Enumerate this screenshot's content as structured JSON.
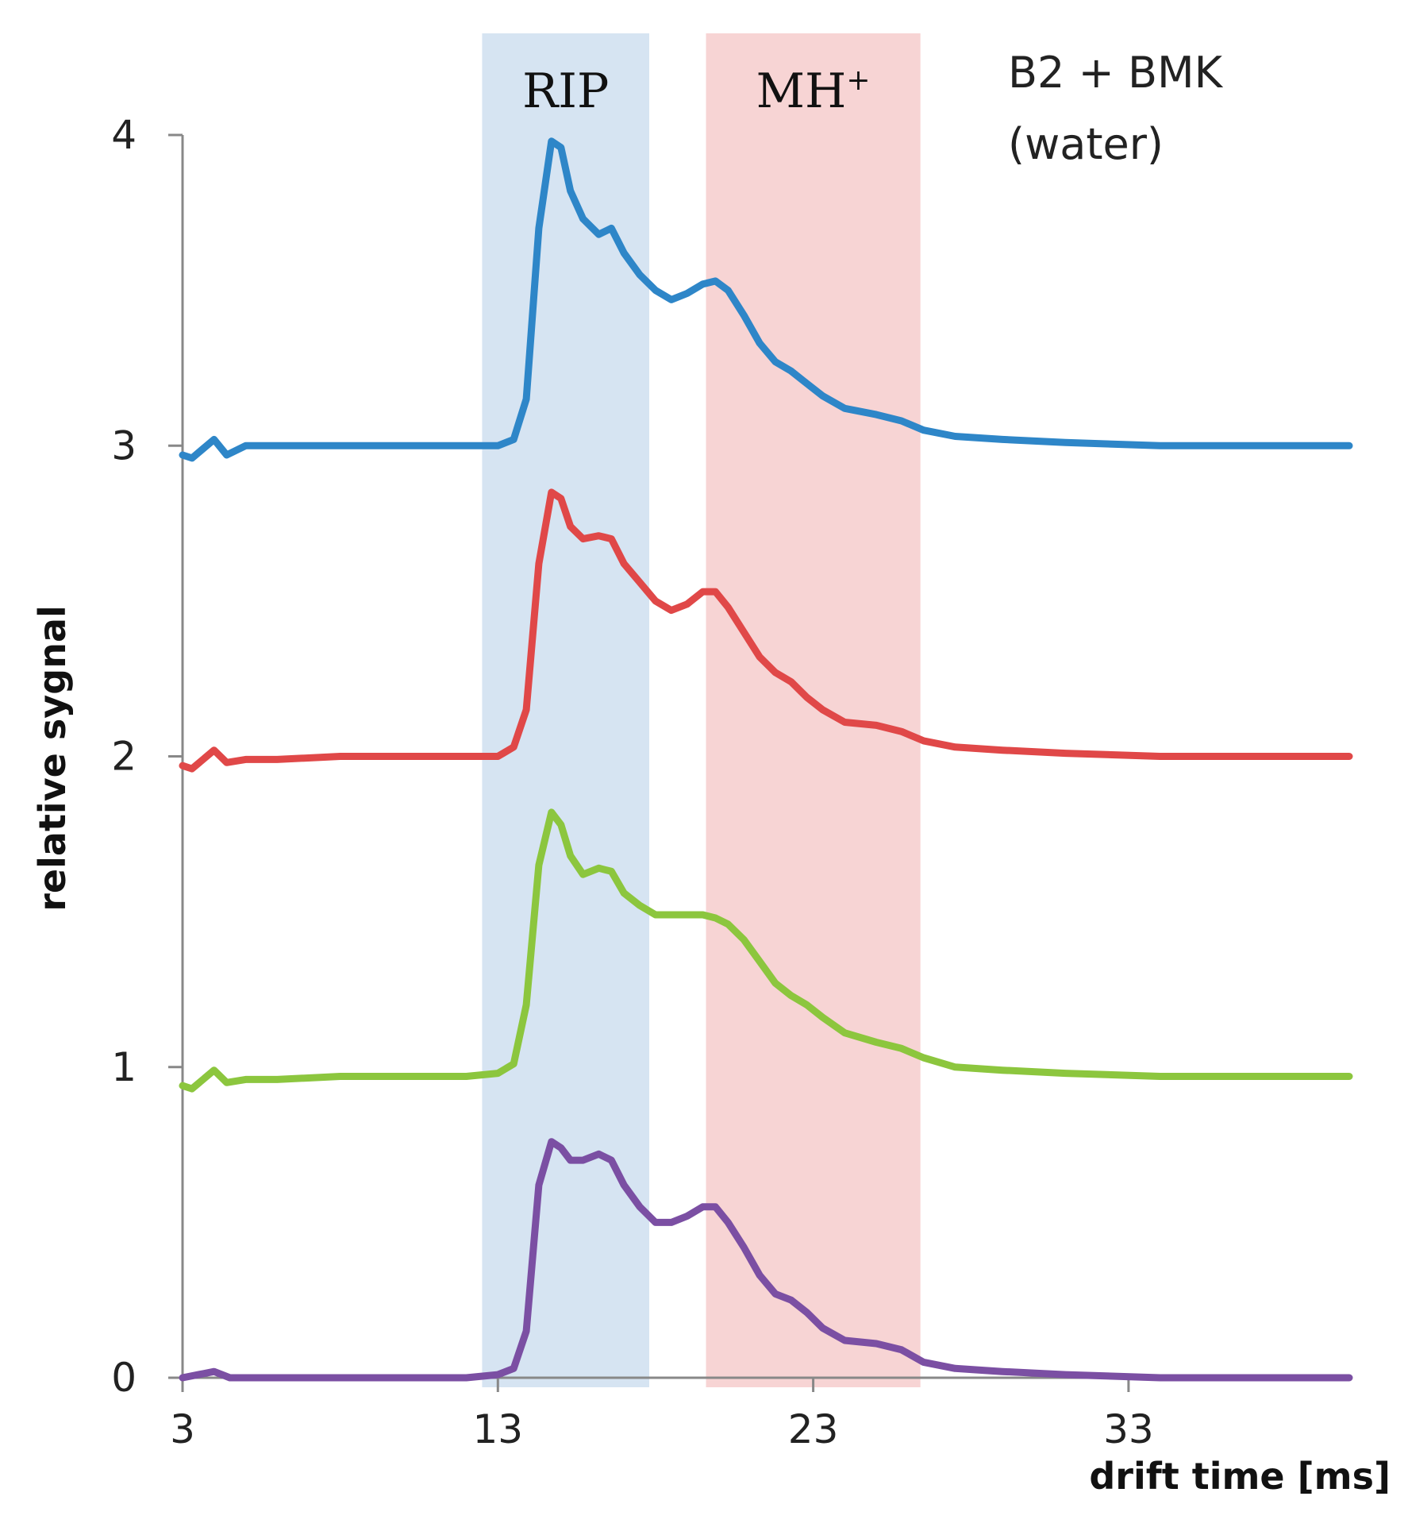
{
  "chart_data": {
    "type": "line",
    "title": "",
    "annotation": {
      "line1": "B2 + BMK",
      "line2": "(water)"
    },
    "xlabel": "drift time [ms]",
    "ylabel": "relative sygnal",
    "xlim": [
      3,
      40
    ],
    "ylim": [
      0,
      4
    ],
    "xticks": [
      3,
      13,
      23,
      33
    ],
    "yticks": [
      0,
      1,
      2,
      3,
      4
    ],
    "grid": false,
    "bands": [
      {
        "label": "RIP",
        "superscript": "",
        "x_start": 12.5,
        "x_end": 17.8,
        "color": "#d6e4f2"
      },
      {
        "label": "MH",
        "superscript": "+",
        "x_start": 19.6,
        "x_end": 26.4,
        "color": "#f7d4d4"
      }
    ],
    "series": [
      {
        "name": "blue trace",
        "color": "#2e86c8",
        "x": [
          3,
          3.3,
          4,
          4.4,
          5,
          6,
          8,
          10,
          12,
          13,
          13.5,
          13.9,
          14.3,
          14.7,
          15.0,
          15.3,
          15.7,
          16.2,
          16.6,
          17.0,
          17.5,
          18.0,
          18.5,
          19.0,
          19.5,
          19.9,
          20.3,
          20.8,
          21.3,
          21.8,
          22.3,
          22.8,
          23.3,
          24.0,
          25.0,
          25.8,
          26.5,
          27.5,
          29,
          31,
          34,
          37,
          40
        ],
        "values": [
          2.97,
          2.96,
          3.02,
          2.97,
          3.0,
          3.0,
          3.0,
          3.0,
          3.0,
          3.0,
          3.02,
          3.15,
          3.7,
          3.98,
          3.96,
          3.82,
          3.73,
          3.68,
          3.7,
          3.62,
          3.55,
          3.5,
          3.47,
          3.49,
          3.52,
          3.53,
          3.5,
          3.42,
          3.33,
          3.27,
          3.24,
          3.2,
          3.16,
          3.12,
          3.1,
          3.08,
          3.05,
          3.03,
          3.02,
          3.01,
          3.0,
          3.0,
          3.0
        ]
      },
      {
        "name": "red trace",
        "color": "#e04848",
        "x": [
          3,
          3.3,
          4,
          4.4,
          5,
          6,
          8,
          10,
          12,
          13,
          13.5,
          13.9,
          14.3,
          14.7,
          15.0,
          15.3,
          15.7,
          16.2,
          16.6,
          17.0,
          17.5,
          18.0,
          18.5,
          19.0,
          19.5,
          19.9,
          20.3,
          20.8,
          21.3,
          21.8,
          22.3,
          22.8,
          23.3,
          24.0,
          25.0,
          25.8,
          26.5,
          27.5,
          29,
          31,
          34,
          37,
          40
        ],
        "values": [
          1.97,
          1.96,
          2.02,
          1.98,
          1.99,
          1.99,
          2.0,
          2.0,
          2.0,
          2.0,
          2.03,
          2.15,
          2.62,
          2.85,
          2.83,
          2.74,
          2.7,
          2.71,
          2.7,
          2.62,
          2.56,
          2.5,
          2.47,
          2.49,
          2.53,
          2.53,
          2.48,
          2.4,
          2.32,
          2.27,
          2.24,
          2.19,
          2.15,
          2.11,
          2.1,
          2.08,
          2.05,
          2.03,
          2.02,
          2.01,
          2.0,
          2.0,
          2.0
        ]
      },
      {
        "name": "green trace",
        "color": "#8cc63e",
        "x": [
          3,
          3.3,
          4,
          4.4,
          5,
          6,
          8,
          10,
          12,
          13,
          13.5,
          13.9,
          14.3,
          14.7,
          15.0,
          15.3,
          15.7,
          16.2,
          16.6,
          17.0,
          17.5,
          18.0,
          18.5,
          19.0,
          19.5,
          19.9,
          20.3,
          20.8,
          21.3,
          21.8,
          22.3,
          22.8,
          23.3,
          24.0,
          25.0,
          25.8,
          26.5,
          27.5,
          29,
          31,
          34,
          37,
          40
        ],
        "values": [
          0.94,
          0.93,
          0.99,
          0.95,
          0.96,
          0.96,
          0.97,
          0.97,
          0.97,
          0.98,
          1.01,
          1.2,
          1.65,
          1.82,
          1.78,
          1.68,
          1.62,
          1.64,
          1.63,
          1.56,
          1.52,
          1.49,
          1.49,
          1.49,
          1.49,
          1.48,
          1.46,
          1.41,
          1.34,
          1.27,
          1.23,
          1.2,
          1.16,
          1.11,
          1.08,
          1.06,
          1.03,
          1.0,
          0.99,
          0.98,
          0.97,
          0.97,
          0.97
        ]
      },
      {
        "name": "purple trace",
        "color": "#7b4fa3",
        "x": [
          3,
          3.5,
          4,
          4.5,
          5,
          6,
          8,
          10,
          12,
          13,
          13.5,
          13.9,
          14.3,
          14.7,
          15.0,
          15.3,
          15.7,
          16.2,
          16.6,
          17.0,
          17.5,
          18.0,
          18.5,
          19.0,
          19.5,
          19.9,
          20.3,
          20.8,
          21.3,
          21.8,
          22.3,
          22.8,
          23.3,
          24.0,
          25.0,
          25.8,
          26.5,
          27.5,
          29,
          31,
          34,
          37,
          40
        ],
        "values": [
          0.0,
          0.01,
          0.02,
          0.0,
          0.0,
          0.0,
          0.0,
          0.0,
          0.0,
          0.01,
          0.03,
          0.15,
          0.62,
          0.76,
          0.74,
          0.7,
          0.7,
          0.72,
          0.7,
          0.62,
          0.55,
          0.5,
          0.5,
          0.52,
          0.55,
          0.55,
          0.5,
          0.42,
          0.33,
          0.27,
          0.25,
          0.21,
          0.16,
          0.12,
          0.11,
          0.09,
          0.05,
          0.03,
          0.02,
          0.01,
          0.0,
          0.0,
          0.0
        ]
      }
    ]
  }
}
